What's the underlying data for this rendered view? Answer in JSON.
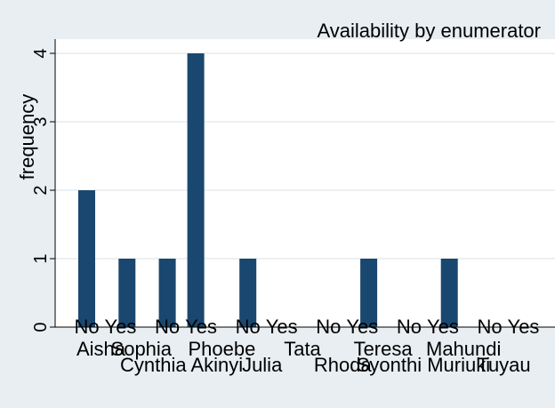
{
  "chart_data": {
    "type": "bar",
    "title": "Availability by enumerator",
    "xlabel": "",
    "ylabel": "frequency",
    "ylim": [
      0,
      4
    ],
    "yticks": [
      0,
      1,
      2,
      3,
      4
    ],
    "grid": true,
    "legend": "none",
    "colors": {
      "bar": "#1a476f",
      "background": "#e8eef2",
      "plot": "#ffffff",
      "grid": "#e6ecef"
    },
    "groups": [
      {
        "label": "Aisha",
        "label_row": 1,
        "bars": [
          {
            "label": "No",
            "value": 2
          },
          {
            "label": "Yes",
            "value": 0
          }
        ]
      },
      {
        "label": "Sophia",
        "label_row": 1,
        "bars": [
          {
            "label": "No",
            "value": 1
          },
          {
            "label": "Yes",
            "value": 0
          }
        ]
      },
      {
        "label": "Cynthia Akinyi",
        "label_row": 2,
        "bars": [
          {
            "label": "No",
            "value": 1
          },
          {
            "label": "Yes",
            "value": 4
          }
        ]
      },
      {
        "label": "Phoebe",
        "label_row": 1,
        "bars": [
          {
            "label": "No",
            "value": 0
          },
          {
            "label": "Yes",
            "value": 0
          }
        ]
      },
      {
        "label": "Julia",
        "label_row": 2,
        "bars": [
          {
            "label": "No",
            "value": 1
          },
          {
            "label": "Yes",
            "value": 0
          }
        ]
      },
      {
        "label": "Tata",
        "label_row": 1,
        "bars": [
          {
            "label": "No",
            "value": 0
          },
          {
            "label": "Yes",
            "value": 0
          }
        ]
      },
      {
        "label": "Rhoda",
        "label_row": 2,
        "bars": [
          {
            "label": "No",
            "value": 0
          },
          {
            "label": "Yes",
            "value": 0
          }
        ]
      },
      {
        "label": "Teresa",
        "label_row": 1,
        "bars": [
          {
            "label": "No",
            "value": 1
          },
          {
            "label": "Yes",
            "value": 0
          }
        ]
      },
      {
        "label": "Syonthi Muriuki",
        "label_row": 2,
        "bars": [
          {
            "label": "No",
            "value": 0
          },
          {
            "label": "Yes",
            "value": 0
          }
        ]
      },
      {
        "label": "Mahundi",
        "label_row": 1,
        "bars": [
          {
            "label": "No",
            "value": 1
          },
          {
            "label": "Yes",
            "value": 0
          }
        ]
      },
      {
        "label": "Tuyau",
        "label_row": 2,
        "bars": [
          {
            "label": "No",
            "value": 0
          },
          {
            "label": "Yes",
            "value": 0
          }
        ]
      }
    ]
  }
}
